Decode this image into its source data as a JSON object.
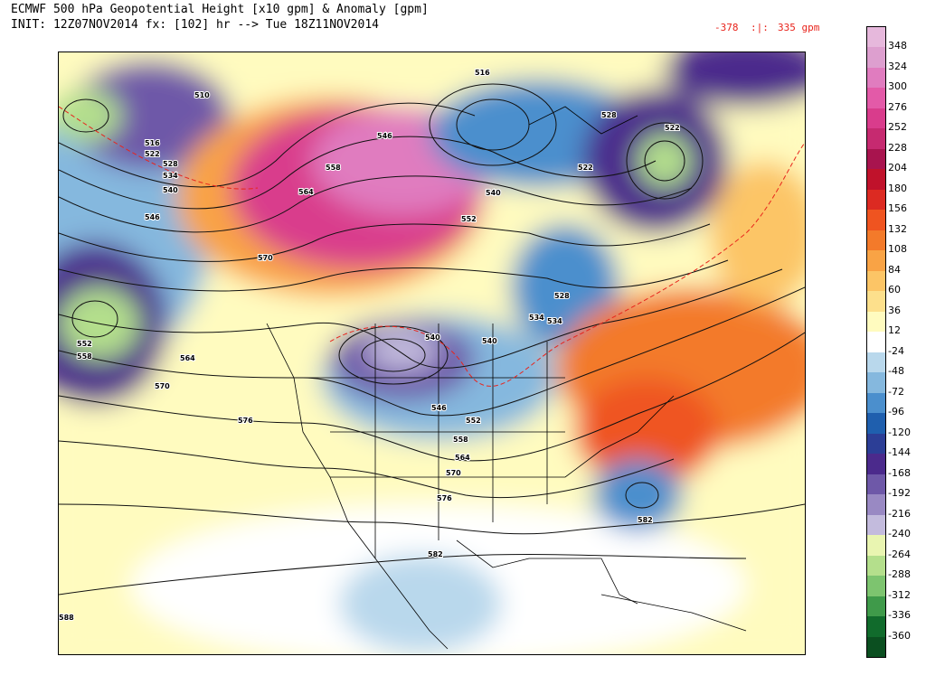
{
  "header": {
    "title_line1": "ECMWF 500 hPa Geopotential Height [x10 gpm] & Anomaly [gpm]",
    "title_line2": "INIT: 12Z07NOV2014 fx: [102] hr --> Tue 18Z11NOV2014",
    "range_min": "-378",
    "range_sep": ":|:",
    "range_max": "335 gpm"
  },
  "colorbar": {
    "levels": [
      {
        "label": "348",
        "color": "#e6b8dc"
      },
      {
        "label": "324",
        "color": "#dd9fcf"
      },
      {
        "label": "300",
        "color": "#e07cbf"
      },
      {
        "label": "276",
        "color": "#e35aa8"
      },
      {
        "label": "252",
        "color": "#d93c8c"
      },
      {
        "label": "228",
        "color": "#c62a70"
      },
      {
        "label": "204",
        "color": "#a8144e"
      },
      {
        "label": "180",
        "color": "#c0122b"
      },
      {
        "label": "156",
        "color": "#dc2a22"
      },
      {
        "label": "132",
        "color": "#ef5420"
      },
      {
        "label": "108",
        "color": "#f37a2a"
      },
      {
        "label": "84",
        "color": "#f9a345"
      },
      {
        "label": "60",
        "color": "#fcc566"
      },
      {
        "label": "36",
        "color": "#fde08c"
      },
      {
        "label": "12",
        "color": "#fffbbf"
      },
      {
        "label": "-24",
        "color": "#ffffff"
      },
      {
        "label": "-48",
        "color": "#b9d8ec"
      },
      {
        "label": "-72",
        "color": "#85b8de"
      },
      {
        "label": "-96",
        "color": "#4b8fcd"
      },
      {
        "label": "-120",
        "color": "#1f5fae"
      },
      {
        "label": "-144",
        "color": "#2c3e96"
      },
      {
        "label": "-168",
        "color": "#4b2a8c"
      },
      {
        "label": "-192",
        "color": "#6e58a8"
      },
      {
        "label": "-216",
        "color": "#9989c3"
      },
      {
        "label": "-240",
        "color": "#c3bbdd"
      },
      {
        "label": "-264",
        "color": "#e9f5b1"
      },
      {
        "label": "-288",
        "color": "#b4df8c"
      },
      {
        "label": "-312",
        "color": "#7dc46f"
      },
      {
        "label": "-336",
        "color": "#3f9a4a"
      },
      {
        "label": "-360",
        "color": "#116b2c"
      }
    ],
    "bottom_color": "#0b4f20"
  },
  "contour_labels": [
    "510",
    "516",
    "522",
    "528",
    "534",
    "540",
    "546",
    "552",
    "558",
    "564",
    "570",
    "576",
    "582",
    "588"
  ],
  "map_labels": [
    {
      "text": "510"
    },
    {
      "text": "516"
    },
    {
      "text": "522"
    },
    {
      "text": "528"
    },
    {
      "text": "534"
    },
    {
      "text": "540"
    },
    {
      "text": "546"
    },
    {
      "text": "546"
    },
    {
      "text": "558"
    },
    {
      "text": "564"
    },
    {
      "text": "570"
    },
    {
      "text": "552"
    },
    {
      "text": "558"
    },
    {
      "text": "564"
    },
    {
      "text": "570"
    },
    {
      "text": "576"
    },
    {
      "text": "552"
    },
    {
      "text": "540"
    },
    {
      "text": "540"
    },
    {
      "text": "546"
    },
    {
      "text": "552"
    },
    {
      "text": "558"
    },
    {
      "text": "564"
    },
    {
      "text": "570"
    },
    {
      "text": "576"
    },
    {
      "text": "582"
    },
    {
      "text": "582"
    },
    {
      "text": "588"
    },
    {
      "text": "516"
    },
    {
      "text": "528"
    },
    {
      "text": "522"
    },
    {
      "text": "534"
    },
    {
      "text": "522"
    },
    {
      "text": "540"
    },
    {
      "text": "528"
    },
    {
      "text": "534"
    }
  ]
}
